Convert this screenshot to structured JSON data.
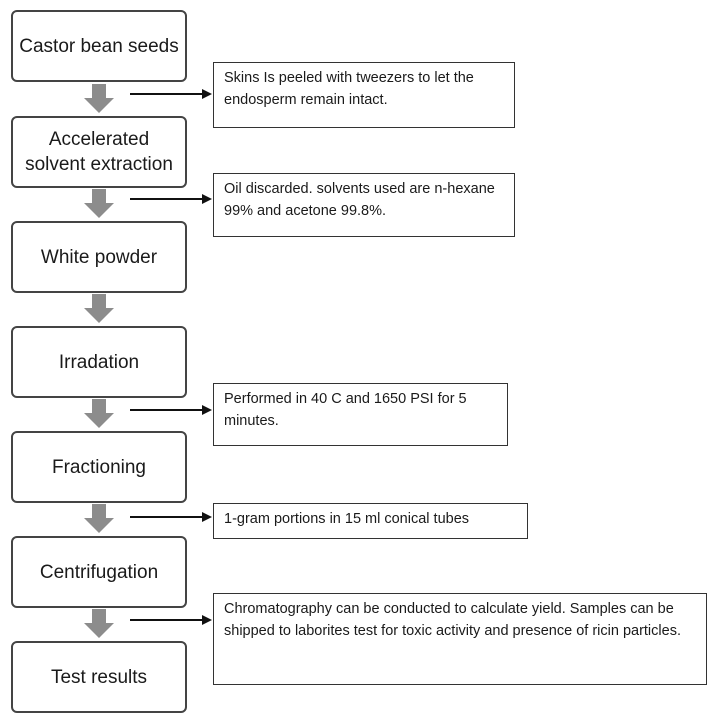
{
  "steps": [
    "Castor bean seeds",
    "Accelerated solvent extraction",
    "White powder",
    "Irradation",
    "Fractioning",
    "Centrifugation",
    "Test results"
  ],
  "notes": [
    "Skins Is peeled with tweezers to let the endosperm remain intact.",
    "Oil discarded. solvents used are n-hexane 99% and acetone 99.8%.",
    "Performed in 40 C and 1650 PSI for 5 minutes.",
    "1-gram portions in 15 ml conical tubes",
    "Chromatography can be conducted to calculate yield. Samples can be shipped to laborites test for toxic activity and presence of ricin particles."
  ],
  "colors": {
    "box_border": "#444444",
    "down_arrow": "#8c8c8c",
    "pointer_arrow": "#111111"
  }
}
